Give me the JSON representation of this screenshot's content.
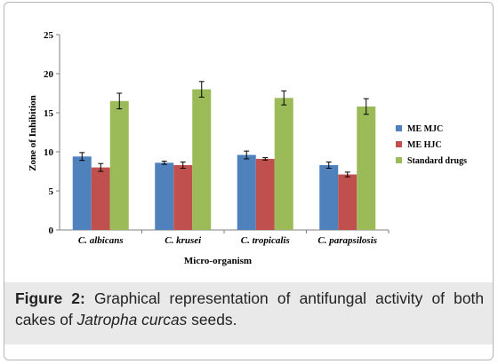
{
  "chart_data": {
    "type": "bar",
    "xlabel": "Micro-organism",
    "ylabel": "Zone of Inhibition",
    "ylim": [
      0,
      25
    ],
    "yticks": [
      "0",
      "5",
      "10",
      "15",
      "20",
      "25"
    ],
    "categories": [
      "C. albicans",
      "C. krusei",
      "C. tropicalis",
      "C. parapsilosis"
    ],
    "series": [
      {
        "name": "ME MJC",
        "color": "#4f81bd",
        "values": [
          9.4,
          8.6,
          9.6,
          8.3
        ],
        "errors": [
          0.5,
          0.2,
          0.5,
          0.4
        ]
      },
      {
        "name": "ME HJC",
        "color": "#c0504d",
        "values": [
          8.0,
          8.3,
          9.1,
          7.1
        ],
        "errors": [
          0.5,
          0.4,
          0.15,
          0.3
        ]
      },
      {
        "name": "Standard drugs",
        "color": "#9bbb59",
        "values": [
          16.5,
          18.0,
          16.9,
          15.8
        ],
        "errors": [
          1.0,
          1.0,
          0.9,
          1.0
        ]
      }
    ],
    "grid": false,
    "error_bars": true,
    "legend_placement": "right"
  },
  "caption": {
    "label": "Figure 2:",
    "text_before": " Graphical representation of antifungal activity of both cakes of ",
    "italic": "Jatropha curcas",
    "text_after": " seeds."
  }
}
